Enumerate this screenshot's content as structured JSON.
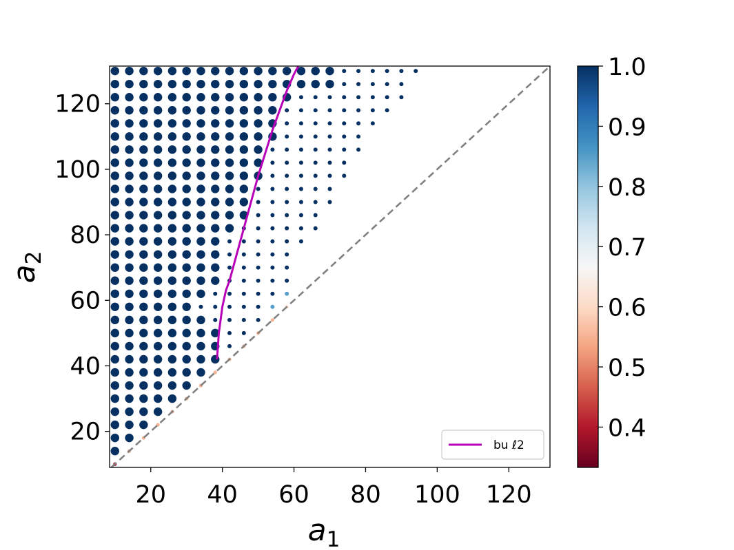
{
  "chart_data": {
    "type": "scatter",
    "title": "",
    "xlabel": "a",
    "xlabel_sub": "1",
    "ylabel": "a",
    "ylabel_sub": "2",
    "xlim": [
      8.5,
      131.5
    ],
    "ylim": [
      9.0,
      131.5
    ],
    "x_ticks": [
      20,
      40,
      60,
      80,
      100,
      120
    ],
    "y_ticks": [
      20,
      40,
      60,
      80,
      100,
      120
    ],
    "grid": false,
    "grid_step": 4,
    "grid_min": 10,
    "grid_max": 130,
    "point_rule": "points at a1 = 10..130 and a2 = a1..130 in steps of 4; point color = value; large dots = 1.0 value region; small marks = 1.0 value sparse region; diagonal a1 = a2 has lower values",
    "series": [
      {
        "name": "bu ℓ2",
        "type": "line",
        "color": "#b800b8",
        "x": [
          38.5,
          39.0,
          40.0,
          41.0,
          42.0,
          44.0,
          46.0,
          48.0,
          50.0,
          52.0,
          54.0,
          56.0,
          58.0,
          60.0,
          61.2
        ],
        "y": [
          42.0,
          50.0,
          58.0,
          63.0,
          66.0,
          74.0,
          82.0,
          90.0,
          98.0,
          105.0,
          112.0,
          118.0,
          124.0,
          129.0,
          131.5
        ]
      },
      {
        "name": "diagonal",
        "type": "line",
        "style": "dashed",
        "color": "#808080",
        "x": [
          9.0,
          131.5
        ],
        "y": [
          9.0,
          131.5
        ]
      }
    ],
    "large_dot_boundary": {
      "description": "for a2 >= 14, large dots where a1 <= boundary(a2)",
      "a2": [
        14,
        18,
        22,
        26,
        30,
        34,
        38,
        42,
        46,
        50,
        54,
        58,
        62,
        66,
        70,
        74,
        78,
        82,
        86,
        90,
        94,
        98,
        102,
        106,
        110,
        114,
        118,
        122,
        126,
        130
      ],
      "a1_max": [
        10,
        14,
        18,
        22,
        26,
        30,
        34,
        38,
        38,
        38,
        34,
        30,
        34,
        38,
        38,
        38,
        38,
        42,
        46,
        46,
        46,
        50,
        50,
        50,
        54,
        54,
        54,
        58,
        70,
        70
      ]
    },
    "small_mark_boundary": {
      "a2": [
        42,
        46,
        50,
        54,
        58,
        62,
        66,
        70,
        74,
        78,
        82,
        86,
        90,
        94,
        98,
        102,
        106,
        110,
        114,
        118,
        122,
        126,
        130
      ],
      "a1_max": [
        38,
        46,
        50,
        54,
        58,
        58,
        58,
        58,
        58,
        62,
        66,
        66,
        70,
        70,
        74,
        74,
        78,
        78,
        82,
        86,
        90,
        90,
        94
      ]
    },
    "diagonal_values": {
      "a1": [
        10,
        14,
        18,
        22,
        26,
        30,
        34,
        38,
        42,
        46,
        50,
        54,
        58
      ],
      "value": [
        0.4,
        0.55,
        0.55,
        0.55,
        0.55,
        0.55,
        0.55,
        0.55,
        0.55,
        0.55,
        0.55,
        0.55,
        0.6
      ]
    },
    "special_points": [
      {
        "a1": 54,
        "a2": 58,
        "value": 0.85
      },
      {
        "a1": 58,
        "a2": 62,
        "value": 0.85
      }
    ],
    "default_value": 1.0,
    "legend": {
      "placement": "lower-right",
      "entries": [
        "bu ℓ2"
      ]
    },
    "colorbar": {
      "min": 0.333,
      "max": 1.0,
      "ticks": [
        "1.0",
        "0.9",
        "0.8",
        "0.7",
        "0.6",
        "0.5",
        "0.4"
      ],
      "tick_values": [
        1.0,
        0.9,
        0.8,
        0.7,
        0.6,
        0.5,
        0.4
      ],
      "colormap": "RdBu",
      "stops": [
        "#67001f",
        "#b2182b",
        "#d6604d",
        "#f4a582",
        "#fddbc7",
        "#f7f7f7",
        "#d1e5f0",
        "#92c5de",
        "#4393c3",
        "#2166ac",
        "#053061"
      ]
    }
  }
}
